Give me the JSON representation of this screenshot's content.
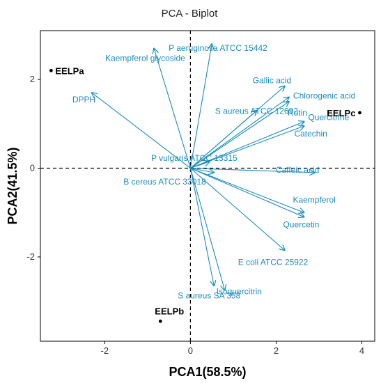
{
  "chart_data": {
    "type": "scatter",
    "title": "PCA - Biplot",
    "xlabel": "PCA1(58.5%)",
    "ylabel": "PCA2(41.5%)",
    "xlim": [
      -3.5,
      4.3
    ],
    "ylim": [
      -3.9,
      3.1
    ],
    "xticks": [
      -2,
      0,
      2,
      4
    ],
    "yticks": [
      -2,
      0,
      2
    ],
    "grid": false,
    "colors": {
      "vector": "#1a8cbe",
      "point": "#000000",
      "axis": "#000000"
    },
    "individuals": [
      {
        "name": "EELPa",
        "x": -3.25,
        "y": 2.2
      },
      {
        "name": "EELPb",
        "x": -0.7,
        "y": -3.45
      },
      {
        "name": "EELPc",
        "x": 3.95,
        "y": 1.25
      }
    ],
    "variables": [
      {
        "name": "P aeruginosa ATCC 15442",
        "x": 0.5,
        "y": 2.8
      },
      {
        "name": "Kaempferol glycoside",
        "x": -0.85,
        "y": 2.7
      },
      {
        "name": "DPPH",
        "x": -2.3,
        "y": 1.7
      },
      {
        "name": "Gallic acid",
        "x": 2.2,
        "y": 1.85
      },
      {
        "name": "Chlorogenic acid",
        "x": 2.3,
        "y": 1.6
      },
      {
        "name": "Rutin",
        "x": 2.3,
        "y": 1.5
      },
      {
        "name": "S aureus ATCC 12692",
        "x": 1.55,
        "y": 1.3
      },
      {
        "name": "Quercitrine",
        "x": 2.65,
        "y": 1.05
      },
      {
        "name": "Catechin",
        "x": 2.65,
        "y": 0.95
      },
      {
        "name": "P vulgaris ATCC 13315",
        "x": 0.45,
        "y": 0.15
      },
      {
        "name": "B cereus ATCC 33018",
        "x": 0.55,
        "y": -0.1
      },
      {
        "name": "Caffeic acid",
        "x": 2.9,
        "y": -0.1
      },
      {
        "name": "Kaempferol",
        "x": 2.65,
        "y": -1.0
      },
      {
        "name": "Quercetin",
        "x": 2.65,
        "y": -1.1
      },
      {
        "name": "E coli ATCC 25922",
        "x": 2.2,
        "y": -1.85
      },
      {
        "name": "Isoquercitrin",
        "x": 0.8,
        "y": -2.75
      },
      {
        "name": "S aureus SA 358",
        "x": 0.55,
        "y": -2.65
      }
    ]
  }
}
